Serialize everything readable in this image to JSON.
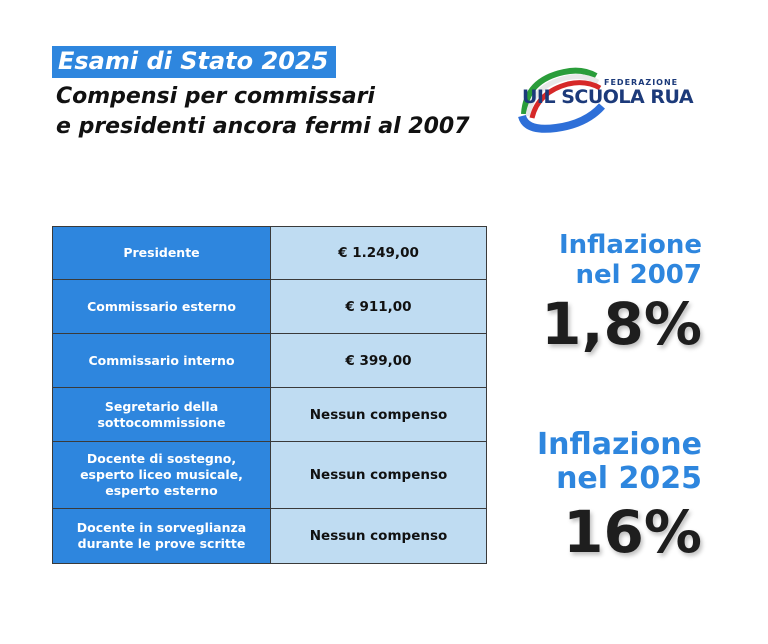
{
  "header": {
    "badge": "Esami di Stato 2025",
    "subtitle_line1": "Compensi per commissari",
    "subtitle_line2": "e presidenti ancora fermi al 2007"
  },
  "logo": {
    "small": "FEDERAZIONE",
    "main": "UIL SCUOLA RUA",
    "colors": [
      "#2a9d3a",
      "#ffffff",
      "#d62828",
      "#1c3a7a"
    ]
  },
  "table": {
    "rows": [
      {
        "role": "Presidente",
        "value": "€ 1.249,00"
      },
      {
        "role": "Commissario esterno",
        "value": "€ 911,00"
      },
      {
        "role": "Commissario interno",
        "value": "€ 399,00"
      },
      {
        "role": "Segretario della sottocommissione",
        "value": "Nessun compenso"
      },
      {
        "role": "Docente di sostegno, esperto liceo musicale, esperto esterno",
        "value": "Nessun compenso"
      },
      {
        "role": "Docente in sorveglianza durante le prove scritte",
        "value": "Nessun compenso"
      }
    ]
  },
  "inflation": [
    {
      "label_line1": "Inflazione",
      "label_line2": "nel 2007",
      "value": "1,8%"
    },
    {
      "label_line1": "Inflazione",
      "label_line2": "nel 2025",
      "value": "16%"
    }
  ],
  "colors": {
    "accent": "#2e86de",
    "cell_light": "#bfdcf2",
    "text_dark": "#1e1e1e"
  }
}
